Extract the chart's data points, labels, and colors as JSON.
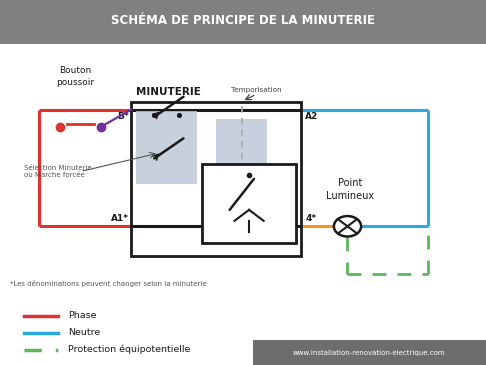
{
  "title": "SCHÉMA DE PRINCIPE DE LA MINUTERIE",
  "title_bg": "#808080",
  "title_color": "white",
  "bg_color": "white",
  "red_color": "#e03030",
  "blue_color": "#29abe2",
  "green_color": "#5cb85c",
  "black_color": "#1a1a1a",
  "purple_color": "#7030a0",
  "orange_color": "#f7941d",
  "gray_box_color": "#c0c8d8",
  "footer_text": "www.installation-renovation-electrique.com",
  "legend_phase": "Phase",
  "legend_neutre": "Neutre",
  "legend_protection": "Protection équipotentielle",
  "footnote": "*Les dénominations peuvent changer selon la minuterie"
}
